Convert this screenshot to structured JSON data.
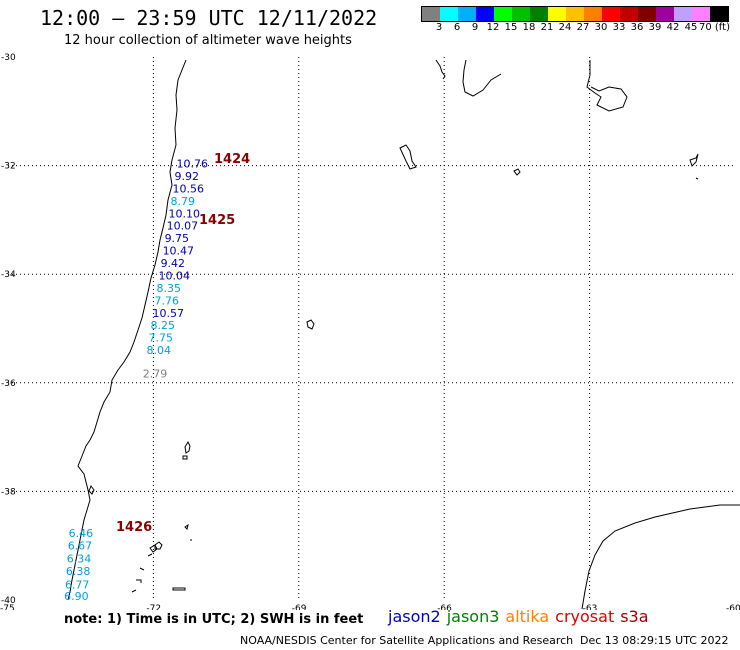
{
  "header": {
    "title": "12:00 – 23:59 UTC 12/11/2022",
    "subtitle": "12 hour collection of altimeter wave heights"
  },
  "legend": {
    "colors": [
      "#808080",
      "#00ffff",
      "#00b0ff",
      "#0000ff",
      "#00ff00",
      "#00c000",
      "#008000",
      "#ffff00",
      "#ffc000",
      "#ff8000",
      "#ff0000",
      "#c00000",
      "#800000",
      "#a000a0",
      "#c0a0ff",
      "#ff80ff",
      "#000000"
    ],
    "labels": [
      "3",
      "6",
      "9",
      "12",
      "15",
      "18",
      "21",
      "24",
      "27",
      "30",
      "33",
      "36",
      "39",
      "42",
      "45",
      "70 (ft)"
    ]
  },
  "map": {
    "lat_ticks": [
      "-30",
      "-32",
      "-34",
      "-36",
      "-38",
      "-40"
    ],
    "lon_ticks": [
      "-75",
      "-72",
      "-69",
      "-66",
      "-63",
      "-60"
    ],
    "observations": [
      {
        "value": "10.76",
        "color": "#0000aa",
        "lat": -31.96
      },
      {
        "value": "9.92",
        "color": "#0000aa",
        "lat": -32.19
      },
      {
        "value": "10.56",
        "color": "#0000aa",
        "lat": -32.42
      },
      {
        "value": "8.79",
        "color": "#00a0e0",
        "lat": -32.65
      },
      {
        "value": "10.10",
        "color": "#0000aa",
        "lat": -32.88
      },
      {
        "value": "10.07",
        "color": "#0000aa",
        "lat": -33.1
      },
      {
        "value": "9.75",
        "color": "#0000aa",
        "lat": -33.33
      },
      {
        "value": "10.47",
        "color": "#0000aa",
        "lat": -33.56
      },
      {
        "value": "9.42",
        "color": "#0000aa",
        "lat": -33.79
      },
      {
        "value": "10.04",
        "color": "#0000aa",
        "lat": -34.02
      },
      {
        "value": "8.35",
        "color": "#00a0e0",
        "lat": -34.25
      },
      {
        "value": "7.76",
        "color": "#00a0e0",
        "lat": -34.48
      },
      {
        "value": "10.57",
        "color": "#0000aa",
        "lat": -34.71
      },
      {
        "value": "8.25",
        "color": "#00a0e0",
        "lat": -34.94
      },
      {
        "value": "7.75",
        "color": "#00a0e0",
        "lat": -35.17
      },
      {
        "value": "8.04",
        "color": "#00a0e0",
        "lat": -35.4
      },
      {
        "value": "2.79",
        "color": "#808080",
        "lat": -35.83
      },
      {
        "value": "6.46",
        "color": "#00a0e0",
        "lat": -38.77
      },
      {
        "value": "6.67",
        "color": "#00a0e0",
        "lat": -39.0
      },
      {
        "value": "6.34",
        "color": "#00a0e0",
        "lat": -39.24
      },
      {
        "value": "6.38",
        "color": "#00a0e0",
        "lat": -39.47
      },
      {
        "value": "6.77",
        "color": "#00a0e0",
        "lat": -39.71
      },
      {
        "value": "6.90",
        "color": "#00a0e0",
        "lat": -39.93
      }
    ],
    "pass_labels": [
      {
        "text": "1424"
      },
      {
        "text": "1425"
      },
      {
        "text": "1426"
      }
    ]
  },
  "footer": {
    "note": "note: 1) Time is in UTC; 2) SWH is in feet",
    "satellites": [
      {
        "name": "jason2",
        "color": "#0000c0"
      },
      {
        "name": "jason3",
        "color": "#008000"
      },
      {
        "name": "altika",
        "color": "#ff8000"
      },
      {
        "name": "cryosat",
        "color": "#e00000"
      },
      {
        "name": "s3a",
        "color": "#a00000"
      }
    ],
    "credit": "NOAA/NESDIS Center for Satellite Applications and Research",
    "timestamp": "Dec 13 08:29:15 UTC 2022"
  }
}
